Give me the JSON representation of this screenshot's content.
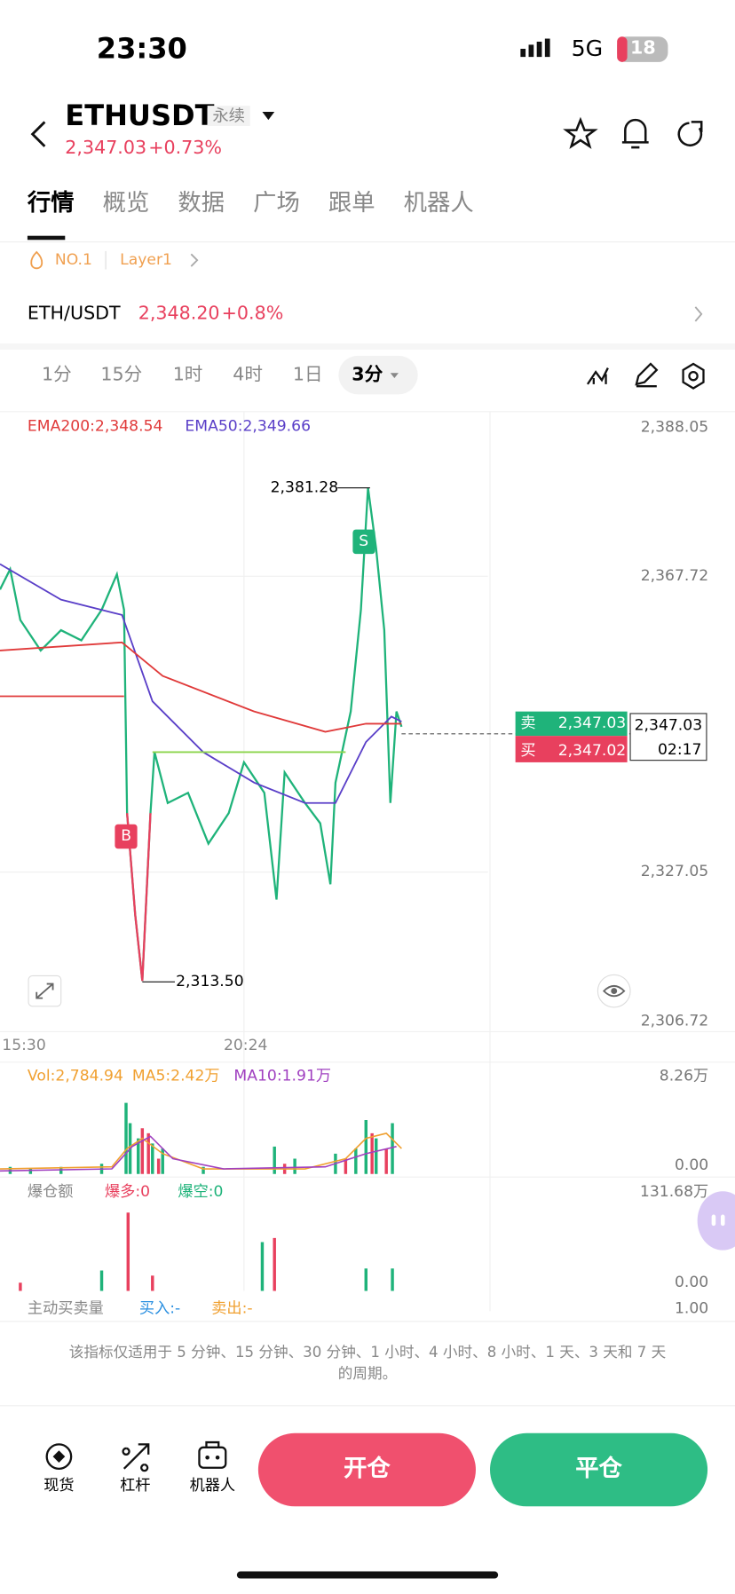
{
  "status": {
    "time": "23:30",
    "network": "5G",
    "battery": "18"
  },
  "header": {
    "symbol": "ETHUSDT",
    "tag": "永续",
    "price": "2,347.03",
    "change": "+0.73%"
  },
  "tabs": [
    "行情",
    "概览",
    "数据",
    "广场",
    "跟单",
    "机器人"
  ],
  "tags": [
    "NO.1",
    "Layer1"
  ],
  "pair": {
    "name": "ETH/USDT",
    "price": "2,348.20",
    "change": "+0.8%"
  },
  "intervals": [
    "1分",
    "15分",
    "1时",
    "4时",
    "1日",
    "3分"
  ],
  "chart": {
    "ema200": "EMA200:2,348.54",
    "ema50": "EMA50:2,349.66",
    "price_axis": [
      "2,388.05",
      "2,367.72",
      "2,327.05",
      "2,306.72"
    ],
    "high": "2,381.28",
    "low": "2,313.50",
    "sell_marker": "S",
    "buy_marker": "B",
    "sell_label": "卖",
    "sell_price": "2,347.03",
    "buy_label": "买",
    "buy_price": "2,347.02",
    "last_price": "2,347.03",
    "countdown": "02:17",
    "time_axis": [
      "15:30",
      "20:24"
    ]
  },
  "volume": {
    "vol": "Vol:2,784.94",
    "ma5": "MA5:2.42万",
    "ma10": "MA10:1.91万",
    "axis": [
      "8.26万",
      "0.00"
    ]
  },
  "liquidation": {
    "title": "爆仓额",
    "long": "爆多:0",
    "short": "爆空:0",
    "axis": [
      "131.68万",
      "0.00"
    ]
  },
  "active": {
    "title": "主动买卖量",
    "buy": "买入:-",
    "sell": "卖出:-",
    "axis": "1.00"
  },
  "note": [
    "该指标仅适用于 5 分钟、15 分钟、30 分钟、1 小时、4 小时、8 小时、1 天、3 天和 7 天",
    "的周期。"
  ],
  "bottom": {
    "nav": [
      "现货",
      "杠杆",
      "机器人"
    ],
    "open": "开仓",
    "close": "平仓"
  }
}
